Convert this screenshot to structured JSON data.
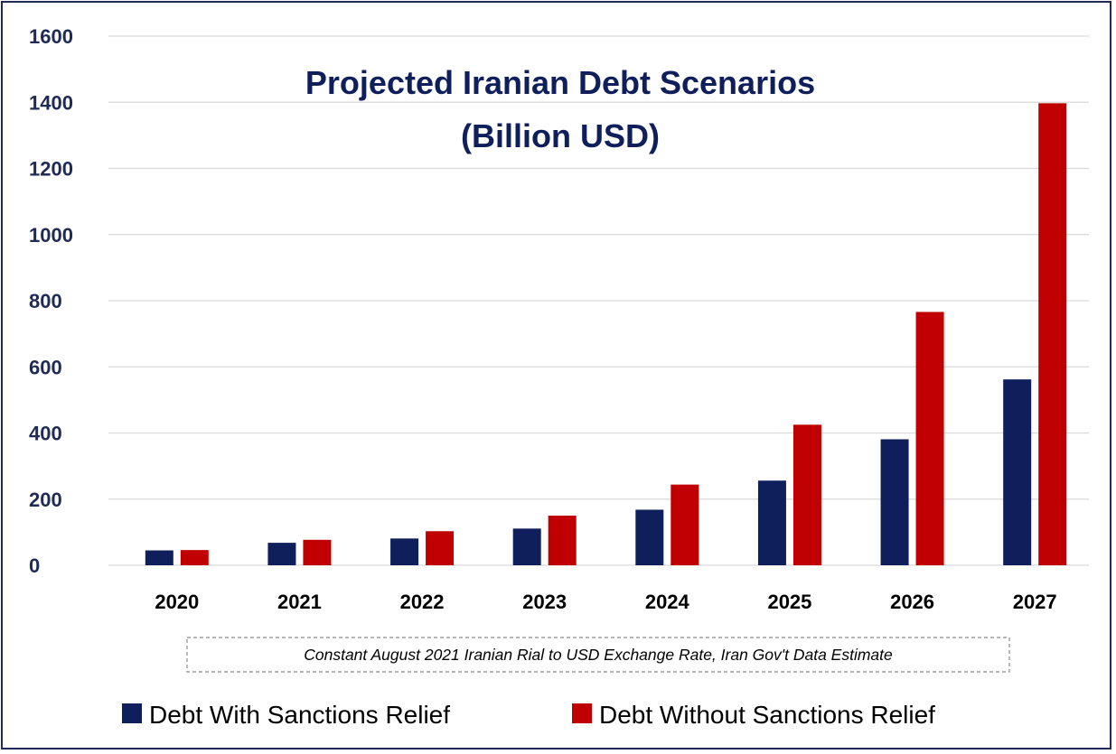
{
  "colors": {
    "navy": "#0f1f5c",
    "red": "#c00000",
    "grid": "#d9d9d9",
    "axis_text": "#000000",
    "y_tick_text": "#1f2a55",
    "title": "#0f1f5c",
    "note_border": "#8c8c8c"
  },
  "note": "Constant August 2021 Iranian Rial to USD Exchange Rate, Iran Gov't Data Estimate",
  "chart_data": {
    "type": "bar",
    "title_lines": [
      "Projected Iranian Debt Scenarios",
      "(Billion USD)"
    ],
    "xlabel": "",
    "ylabel": "",
    "categories": [
      "2020",
      "2021",
      "2022",
      "2023",
      "2024",
      "2025",
      "2026",
      "2027"
    ],
    "series": [
      {
        "name": "Debt With Sanctions Relief",
        "color": "#0f1f5c",
        "values": [
          45,
          68,
          81,
          111,
          168,
          256,
          381,
          562
        ]
      },
      {
        "name": "Debt Without Sanctions Relief",
        "color": "#c00000",
        "values": [
          46,
          77,
          103,
          150,
          244,
          425,
          766,
          1397
        ]
      }
    ],
    "ylim": [
      0,
      1600
    ],
    "yticks": [
      0,
      200,
      400,
      600,
      800,
      1000,
      1200,
      1400,
      1600
    ],
    "grid": true,
    "legend_position": "bottom"
  }
}
